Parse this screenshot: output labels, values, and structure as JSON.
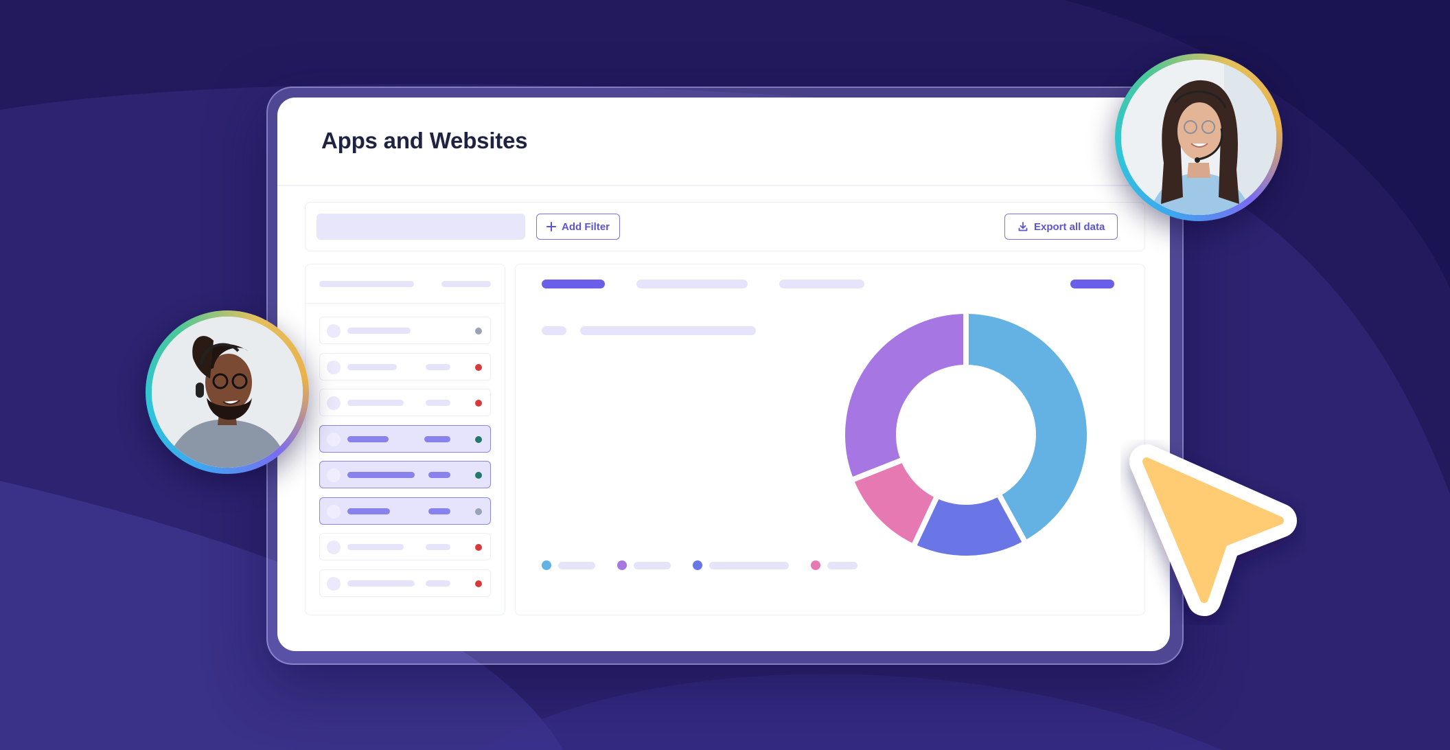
{
  "page": {
    "title": "Apps and Websites"
  },
  "toolbar": {
    "add_filter_label": "Add Filter",
    "export_label": "Export all data"
  },
  "list": {
    "rows": [
      {
        "selected": false,
        "status": "#9aa3b5"
      },
      {
        "selected": false,
        "status": "#d63a3a"
      },
      {
        "selected": false,
        "status": "#d63a3a"
      },
      {
        "selected": true,
        "status": "#1f7a6b"
      },
      {
        "selected": true,
        "status": "#1f7a6b"
      },
      {
        "selected": true,
        "status": "#9aa3b5"
      },
      {
        "selected": false,
        "status": "#d63a3a"
      },
      {
        "selected": false,
        "status": "#d63a3a"
      }
    ]
  },
  "chart_data": {
    "type": "pie",
    "variant": "donut",
    "slices": [
      {
        "value": 42,
        "color": "#64b1e3"
      },
      {
        "value": 15,
        "color": "#6b76e6"
      },
      {
        "value": 12,
        "color": "#e779b2"
      },
      {
        "value": 31,
        "color": "#a676e2"
      }
    ],
    "legend_placement": "bottom-left"
  },
  "colors": {
    "background": "#231a5e",
    "accent": "#6a5fe8",
    "cursor": "#ffcb73"
  },
  "icons": {
    "add_filter": "plus-icon",
    "export": "download-icon",
    "cursor": "pointer-arrow-icon"
  }
}
